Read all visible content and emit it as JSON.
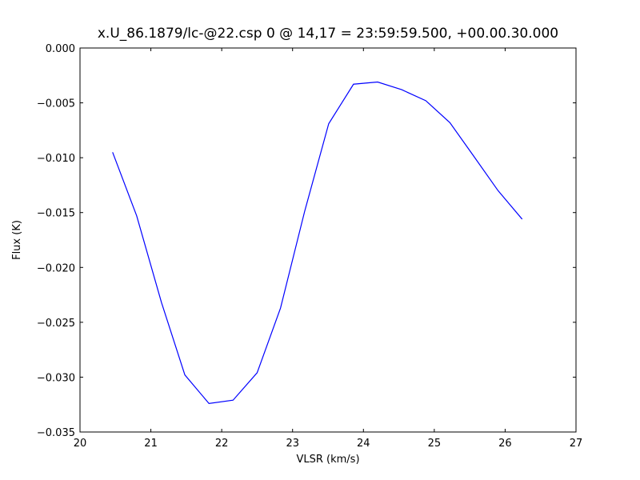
{
  "chart_data": {
    "type": "line",
    "title": "x.U_86.1879/lc-@22.csp 0 @ 14,17 = 23:59:59.500, +00.00.30.000",
    "x_label": "VLSR (km/s)",
    "y_label": "Flux (K)",
    "x": [
      20.46,
      20.8,
      21.15,
      21.48,
      21.82,
      22.16,
      22.5,
      22.83,
      23.17,
      23.51,
      23.86,
      24.2,
      24.54,
      24.88,
      25.22,
      25.55,
      25.9,
      26.24
    ],
    "series": [
      {
        "name": "Flux",
        "color": "#0000ff",
        "values": [
          -0.0095,
          -0.0153,
          -0.0232,
          -0.0298,
          -0.0324,
          -0.0321,
          -0.0296,
          -0.0237,
          -0.0149,
          -0.0069,
          -0.0033,
          -0.0031,
          -0.0038,
          -0.0048,
          -0.0068,
          -0.0098,
          -0.013,
          -0.0156
        ]
      }
    ],
    "xlim": [
      20,
      27
    ],
    "xticks": [
      20,
      21,
      22,
      23,
      24,
      25,
      26,
      27
    ],
    "ylim": [
      -0.035,
      0
    ],
    "yticks": [
      {
        "value": 0,
        "label": "0.000"
      },
      {
        "value": -0.005,
        "label": "−0.005"
      },
      {
        "value": -0.01,
        "label": "−0.010"
      },
      {
        "value": -0.015,
        "label": "−0.015"
      },
      {
        "value": -0.02,
        "label": "−0.020"
      },
      {
        "value": -0.025,
        "label": "−0.025"
      },
      {
        "value": -0.03,
        "label": "−0.030"
      },
      {
        "value": -0.035,
        "label": "−0.035"
      }
    ],
    "grid": false
  }
}
